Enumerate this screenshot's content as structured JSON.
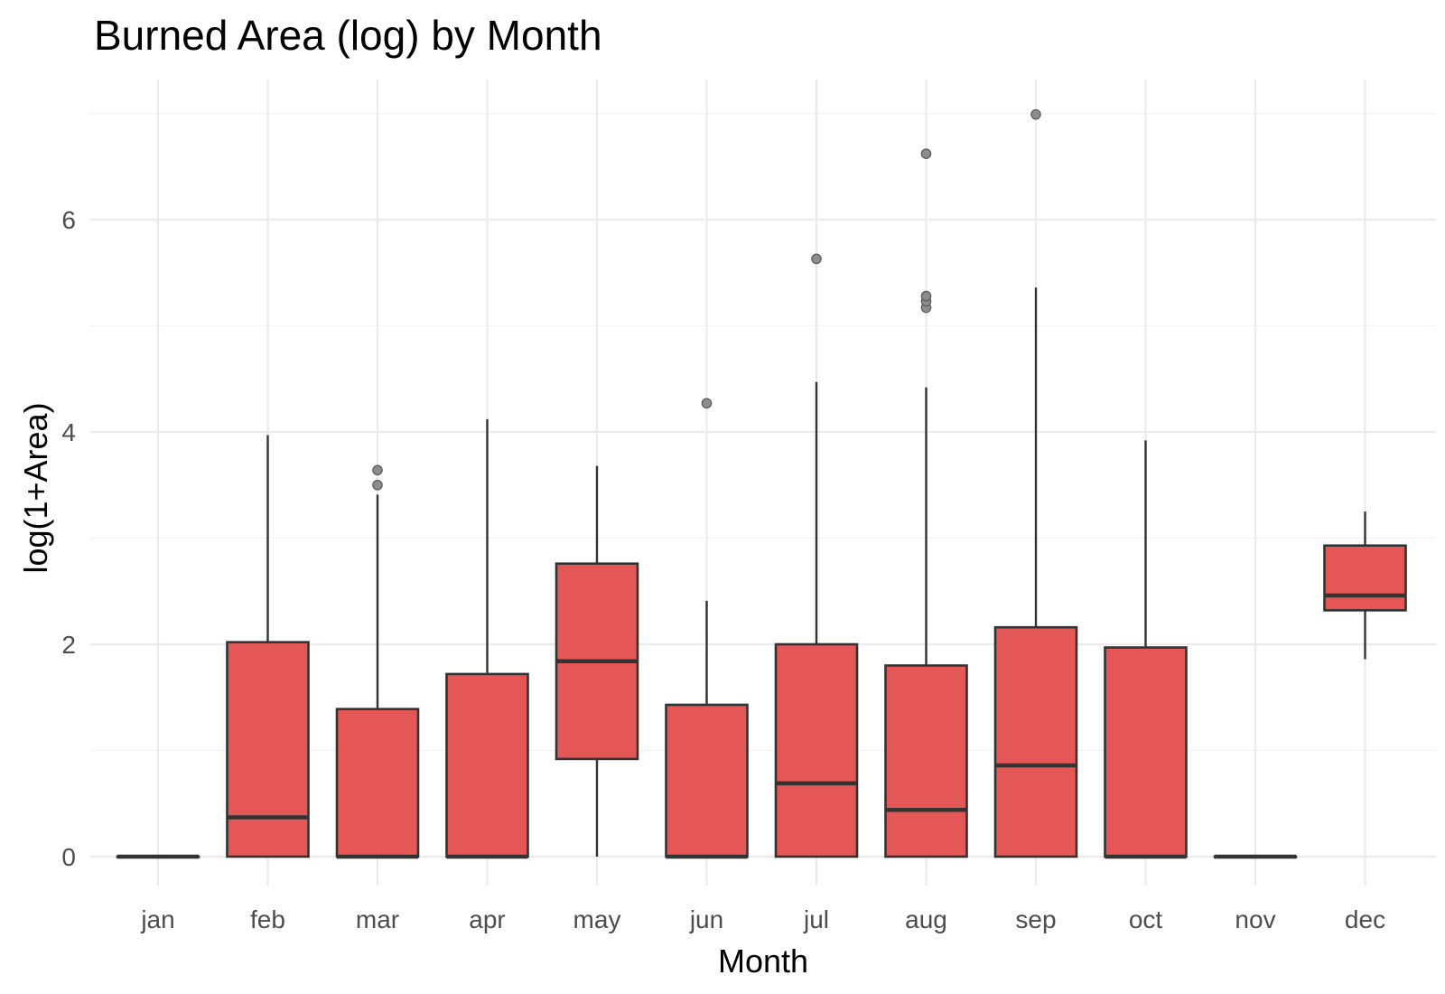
{
  "chart_data": {
    "type": "boxplot",
    "title": "Burned Area (log) by Month",
    "xlabel": "Month",
    "ylabel": "log(1+Area)",
    "categories": [
      "jan",
      "feb",
      "mar",
      "apr",
      "may",
      "jun",
      "jul",
      "aug",
      "sep",
      "oct",
      "nov",
      "dec"
    ],
    "ylim": [
      -0.35,
      7.4
    ],
    "y_ticks": [
      0,
      2,
      4,
      6
    ],
    "y_tick_labels": [
      "0",
      "2",
      "4",
      "6"
    ],
    "y_minor_ticks": [
      1,
      3,
      5,
      7
    ],
    "grid": true,
    "legend": "none",
    "box_fill": "#e45756",
    "box_stroke": "#333333",
    "outlier_color": "#7f7f7f",
    "boxes": [
      {
        "month": "jan",
        "whisker_low": 0.0,
        "q1": 0.0,
        "median": 0.0,
        "q3": 0.0,
        "whisker_high": 0.0,
        "outliers": []
      },
      {
        "month": "feb",
        "whisker_low": 0.0,
        "q1": 0.0,
        "median": 0.37,
        "q3": 2.02,
        "whisker_high": 3.97,
        "outliers": []
      },
      {
        "month": "mar",
        "whisker_low": 0.0,
        "q1": 0.0,
        "median": 0.0,
        "q3": 1.39,
        "whisker_high": 3.41,
        "outliers": [
          3.5,
          3.64
        ]
      },
      {
        "month": "apr",
        "whisker_low": 0.0,
        "q1": 0.0,
        "median": 0.0,
        "q3": 1.72,
        "whisker_high": 4.12,
        "outliers": []
      },
      {
        "month": "may",
        "whisker_low": 0.0,
        "q1": 0.92,
        "median": 1.84,
        "q3": 2.76,
        "whisker_high": 3.68,
        "outliers": []
      },
      {
        "month": "jun",
        "whisker_low": 0.0,
        "q1": 0.0,
        "median": 0.0,
        "q3": 1.43,
        "whisker_high": 2.41,
        "outliers": [
          4.27
        ]
      },
      {
        "month": "jul",
        "whisker_low": 0.0,
        "q1": 0.0,
        "median": 0.69,
        "q3": 2.0,
        "whisker_high": 4.47,
        "outliers": [
          5.63
        ]
      },
      {
        "month": "aug",
        "whisker_low": 0.0,
        "q1": 0.0,
        "median": 0.44,
        "q3": 1.8,
        "whisker_high": 4.42,
        "outliers": [
          5.17,
          5.23,
          5.28,
          6.62
        ]
      },
      {
        "month": "sep",
        "whisker_low": 0.0,
        "q1": 0.0,
        "median": 0.86,
        "q3": 2.16,
        "whisker_high": 5.36,
        "outliers": [
          6.99
        ]
      },
      {
        "month": "oct",
        "whisker_low": 0.0,
        "q1": 0.0,
        "median": 0.0,
        "q3": 1.97,
        "whisker_high": 3.92,
        "outliers": []
      },
      {
        "month": "nov",
        "whisker_low": 0.0,
        "q1": 0.0,
        "median": 0.0,
        "q3": 0.0,
        "whisker_high": 0.0,
        "outliers": []
      },
      {
        "month": "dec",
        "whisker_low": 1.86,
        "q1": 2.32,
        "median": 2.46,
        "q3": 2.93,
        "whisker_high": 3.25,
        "outliers": []
      }
    ]
  }
}
